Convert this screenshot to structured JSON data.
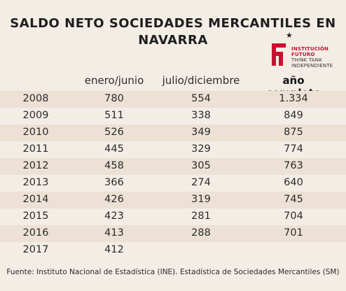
{
  "title_line1": "SALDO NETO SOCIEDADES MERCANTILES EN",
  "title_line2": "NAVARRA",
  "logo": {
    "line1": "INSTITUCIÓN",
    "line2": "FUTURO",
    "line3": "THINK TANK",
    "line4": "INDEPENDIENTE",
    "brand_color": "#c8102e"
  },
  "table": {
    "headers": [
      "enero/junio",
      "julio/diciembre",
      "año completo"
    ],
    "rows": [
      {
        "year": "2008",
        "h1": "780",
        "h2": "554",
        "total": "1.334"
      },
      {
        "year": "2009",
        "h1": "511",
        "h2": "338",
        "total": "849"
      },
      {
        "year": "2010",
        "h1": "526",
        "h2": "349",
        "total": "875"
      },
      {
        "year": "2011",
        "h1": "445",
        "h2": "329",
        "total": "774"
      },
      {
        "year": "2012",
        "h1": "458",
        "h2": "305",
        "total": "763"
      },
      {
        "year": "2013",
        "h1": "366",
        "h2": "274",
        "total": "640"
      },
      {
        "year": "2014",
        "h1": "426",
        "h2": "319",
        "total": "745"
      },
      {
        "year": "2015",
        "h1": "423",
        "h2": "281",
        "total": "704"
      },
      {
        "year": "2016",
        "h1": "413",
        "h2": "288",
        "total": "701"
      },
      {
        "year": "2017",
        "h1": "412",
        "h2": "",
        "total": ""
      }
    ]
  },
  "source": "Fuente: Instituto Nacional de Estadística (INE). Estadística de Sociedades Mercantiles (SM)"
}
